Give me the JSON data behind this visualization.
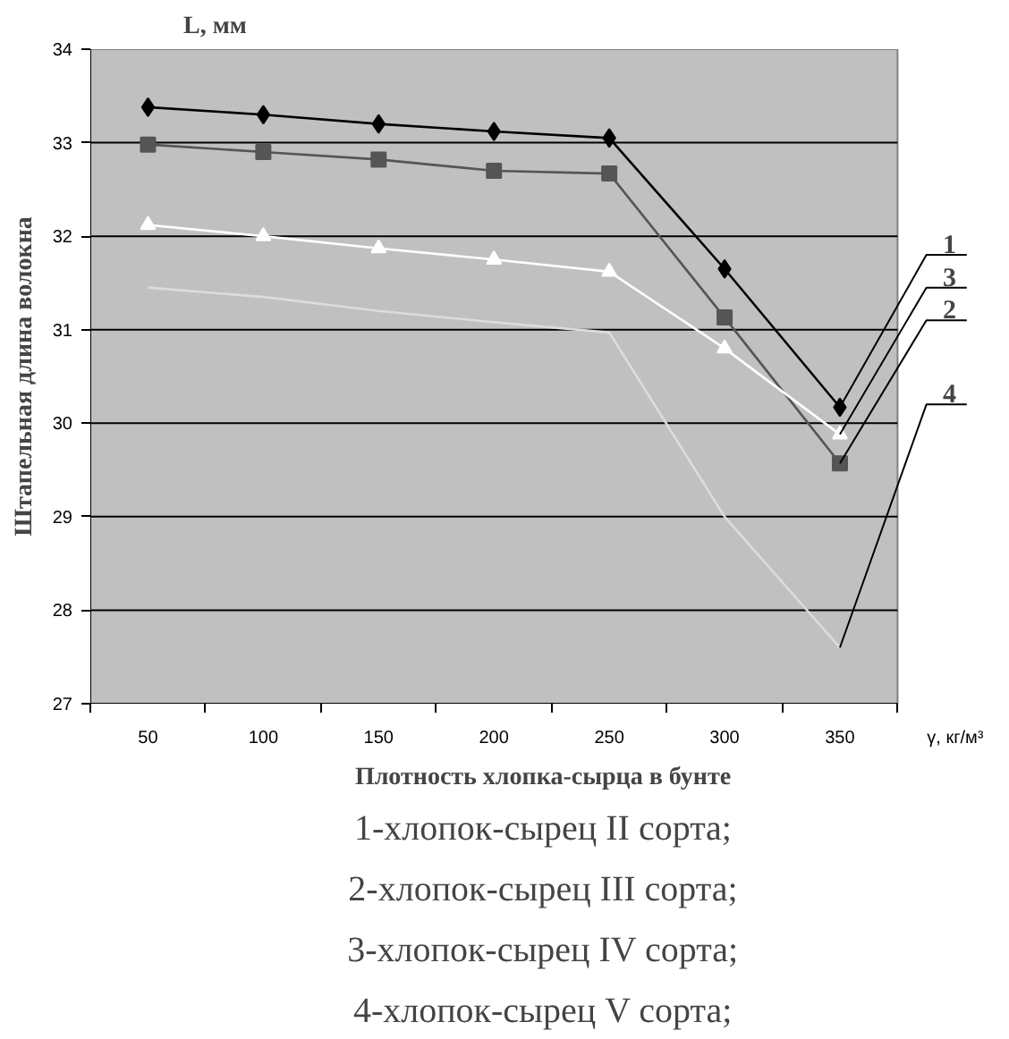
{
  "chart_data": {
    "type": "line",
    "xlabel": "Плотность хлопка-сырца в бунте",
    "ylabel": "Штапельная длина волокна",
    "categories": [
      "50",
      "100",
      "150",
      "200",
      "250",
      "300",
      "350"
    ],
    "series": [
      {
        "color": "#000000",
        "marker": "diamond",
        "values": [
          33.38,
          33.3,
          33.2,
          33.12,
          33.05,
          31.65,
          30.17
        ]
      },
      {
        "color": "#555555",
        "marker": "square",
        "values": [
          32.98,
          32.9,
          32.82,
          32.7,
          32.67,
          31.13,
          29.57
        ]
      },
      {
        "color": "#ffffff",
        "marker": "triangle",
        "values": [
          32.12,
          32.0,
          31.87,
          31.75,
          31.62,
          30.8,
          29.88
        ]
      },
      {
        "color": "#dcdcdc",
        "marker": "none",
        "values": [
          31.45,
          31.35,
          31.2,
          31.08,
          30.97,
          29.0,
          27.6
        ]
      }
    ],
    "ylim": [
      27,
      34
    ],
    "yticks": [
      27,
      28,
      29,
      30,
      31,
      32,
      33,
      34
    ],
    "grid": "y",
    "annotations": [
      {
        "text": "1",
        "x": "350",
        "y": 30.17
      },
      {
        "text": "3",
        "x": "350",
        "y": 29.88
      },
      {
        "text": "2",
        "x": "350",
        "y": 29.57
      },
      {
        "text": "4",
        "x": "350",
        "y": 27.6
      },
      "L, мм",
      "γ, кг/м³",
      "1-хлопок-сырец II сорта;",
      "2-хлопок-сырец III сорта;",
      "3-хлопок-сырец IV сорта;",
      "4-хлопок-сырец V сорта;"
    ]
  }
}
